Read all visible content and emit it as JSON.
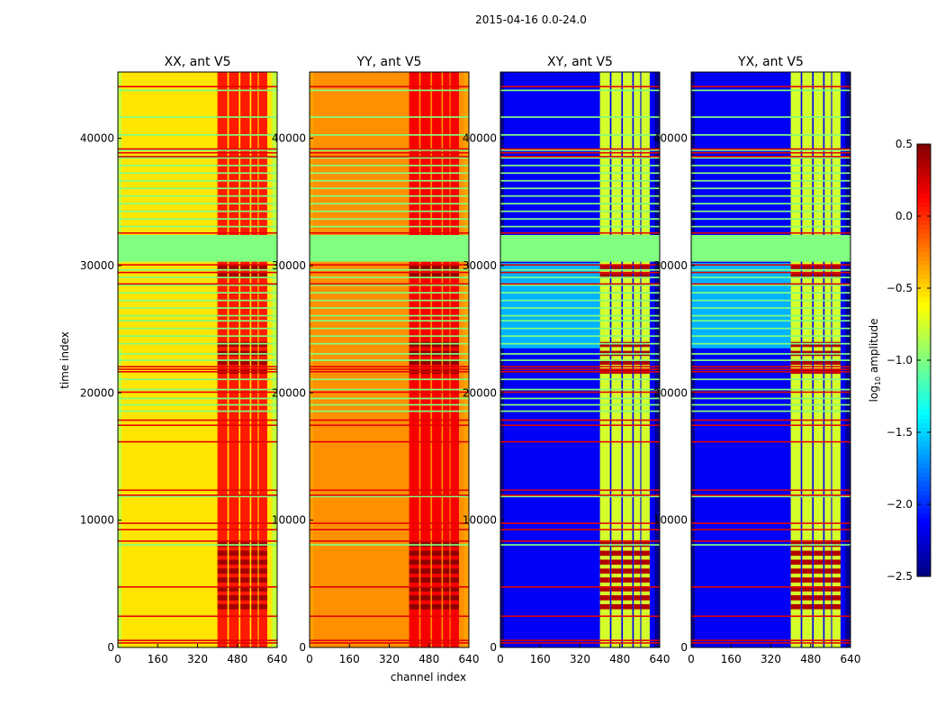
{
  "chart_data": {
    "type": "heatmap",
    "title": "2015-04-16 0.0-24.0",
    "xlabel": "channel index",
    "ylabel": "time index",
    "xlim": [
      0,
      640
    ],
    "ylim": [
      0,
      45200
    ],
    "xticks": [
      "0",
      "160",
      "320",
      "480",
      "640"
    ],
    "xtick_values": [
      0,
      160,
      320,
      480,
      640
    ],
    "ytick_values": [
      0,
      10000,
      20000,
      30000,
      40000
    ],
    "yticks": [
      "0",
      "10000",
      "20000",
      "30000",
      "40000"
    ],
    "colorbar": {
      "colormap": "jet",
      "range": [
        -2.5,
        0.5
      ],
      "tick_values": [
        0.5,
        0.0,
        -0.5,
        -1.0,
        -1.5,
        -2.0,
        -2.5
      ],
      "ticks": [
        "0.5",
        "0.0",
        "−0.5",
        "−1.0",
        "−1.5",
        "−2.0",
        "−2.5"
      ],
      "label_base": "log",
      "label_sub": "10",
      "label_rest": " amplitude"
    },
    "rfi_channel_strips": [
      [
        400,
        440
      ],
      [
        446,
        486
      ],
      [
        492,
        530
      ],
      [
        536,
        562
      ],
      [
        566,
        600
      ]
    ],
    "panels": [
      {
        "title": "XX, ant V5",
        "background": -0.55,
        "edge": -0.8,
        "band": 0.05,
        "band_dark": 0.4,
        "mid_region": -0.55
      },
      {
        "title": "YY, ant V5",
        "background": -0.3,
        "edge": -0.35,
        "band": 0.15,
        "band_dark": 0.45,
        "mid_region": -0.3
      },
      {
        "title": "XY, ant V5",
        "background": -2.15,
        "edge": -2.45,
        "band": -0.75,
        "band_dark": 0.35,
        "mid_region": -1.6
      },
      {
        "title": "YX, ant V5",
        "background": -2.15,
        "edge": -2.45,
        "band": -0.75,
        "band_dark": 0.35,
        "mid_region": -1.6
      }
    ],
    "mid_region_time": [
      23500,
      30200
    ],
    "dark_band_time_ranges": [
      [
        3000,
        8000
      ],
      [
        21500,
        24000
      ],
      [
        29000,
        30200
      ]
    ],
    "flagged_block": {
      "time": [
        30300,
        32400
      ],
      "value": -1.0
    },
    "flagged_rows": {
      "value": -1.0,
      "times": [
        18500,
        19000,
        19500,
        20200,
        21000,
        22500,
        23000,
        23800,
        24400,
        25000,
        25600,
        26000,
        26600,
        27200,
        27800,
        28400,
        29000,
        29600,
        33000,
        33600,
        34200,
        34800,
        35400,
        36000,
        36600,
        37200,
        37800,
        38400,
        39000,
        40200,
        41600,
        43700,
        11800,
        8000
      ]
    },
    "rfi_rows": {
      "value": 0.2,
      "times": [
        300,
        500,
        2400,
        4700,
        8300,
        9200,
        9700,
        11900,
        12300,
        16100,
        17400,
        17800,
        20000,
        21600,
        21800,
        22000,
        28500,
        29400,
        30000,
        32500,
        38500,
        38800,
        39100,
        44000
      ]
    }
  }
}
